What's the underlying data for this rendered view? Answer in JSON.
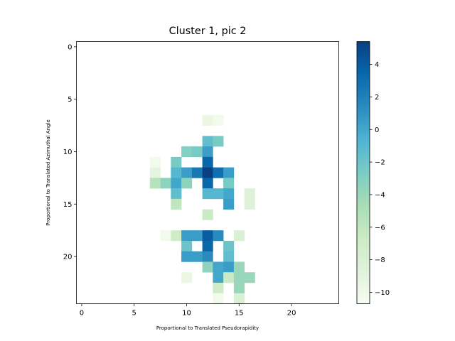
{
  "chart_data": {
    "type": "heatmap",
    "title": "Cluster 1, pic 2",
    "xlabel": "Proportional to Translated Pseudorapidity",
    "ylabel": "Proportional to Translated Azimuthal Angle",
    "grid_size": [
      25,
      25
    ],
    "x_ticks": [
      "0",
      "5",
      "10",
      "15",
      "20"
    ],
    "y_ticks": [
      "0",
      "5",
      "10",
      "15",
      "20"
    ],
    "colormap": "GnBu",
    "vmin": -10.7,
    "vmax": 5.4,
    "colorbar_ticks": [
      "4",
      "2",
      "0",
      "−2",
      "−4",
      "−6",
      "−8",
      "−10"
    ],
    "colorbar_tick_values": [
      4,
      2,
      0,
      -2,
      -4,
      -6,
      -8,
      -10
    ],
    "cells": [
      {
        "row": 7,
        "col": 12,
        "value": -9.5
      },
      {
        "row": 7,
        "col": 13,
        "value": -10.3
      },
      {
        "row": 9,
        "col": 12,
        "value": -1.5
      },
      {
        "row": 9,
        "col": 13,
        "value": -2.5
      },
      {
        "row": 10,
        "col": 10,
        "value": -3.0
      },
      {
        "row": 10,
        "col": 11,
        "value": -2.5
      },
      {
        "row": 10,
        "col": 12,
        "value": 0.5
      },
      {
        "row": 11,
        "col": 7,
        "value": -10.3
      },
      {
        "row": 11,
        "col": 9,
        "value": -2.5
      },
      {
        "row": 11,
        "col": 12,
        "value": 3.5
      },
      {
        "row": 12,
        "col": 7,
        "value": -9.0
      },
      {
        "row": 12,
        "col": 9,
        "value": -1.0
      },
      {
        "row": 12,
        "col": 10,
        "value": 0.5
      },
      {
        "row": 12,
        "col": 11,
        "value": 2.5
      },
      {
        "row": 12,
        "col": 12,
        "value": 5.4
      },
      {
        "row": 12,
        "col": 13,
        "value": 3.0
      },
      {
        "row": 12,
        "col": 14,
        "value": 0.5
      },
      {
        "row": 13,
        "col": 7,
        "value": -5.5
      },
      {
        "row": 13,
        "col": 8,
        "value": -3.5
      },
      {
        "row": 13,
        "col": 9,
        "value": 0.0
      },
      {
        "row": 13,
        "col": 10,
        "value": -3.5
      },
      {
        "row": 13,
        "col": 12,
        "value": 3.5
      },
      {
        "row": 13,
        "col": 14,
        "value": -2.5
      },
      {
        "row": 14,
        "col": 9,
        "value": -1.5
      },
      {
        "row": 14,
        "col": 12,
        "value": -1.0
      },
      {
        "row": 14,
        "col": 13,
        "value": -1.0
      },
      {
        "row": 14,
        "col": 14,
        "value": 0.0
      },
      {
        "row": 14,
        "col": 16,
        "value": -8.5
      },
      {
        "row": 15,
        "col": 9,
        "value": -6.0
      },
      {
        "row": 15,
        "col": 14,
        "value": 0.5
      },
      {
        "row": 15,
        "col": 16,
        "value": -8.5
      },
      {
        "row": 16,
        "col": 12,
        "value": -6.5
      },
      {
        "row": 18,
        "col": 8,
        "value": -10.3
      },
      {
        "row": 18,
        "col": 9,
        "value": -7.0
      },
      {
        "row": 18,
        "col": 10,
        "value": 0.5
      },
      {
        "row": 18,
        "col": 11,
        "value": 0.5
      },
      {
        "row": 18,
        "col": 12,
        "value": 4.0
      },
      {
        "row": 18,
        "col": 13,
        "value": 1.5
      },
      {
        "row": 18,
        "col": 15,
        "value": -8.0
      },
      {
        "row": 19,
        "col": 10,
        "value": -2.0
      },
      {
        "row": 19,
        "col": 12,
        "value": 3.5
      },
      {
        "row": 19,
        "col": 14,
        "value": -2.0
      },
      {
        "row": 20,
        "col": 10,
        "value": 0.5
      },
      {
        "row": 20,
        "col": 11,
        "value": 0.5
      },
      {
        "row": 20,
        "col": 12,
        "value": 1.5
      },
      {
        "row": 20,
        "col": 14,
        "value": -1.5
      },
      {
        "row": 21,
        "col": 12,
        "value": -3.5
      },
      {
        "row": 21,
        "col": 13,
        "value": 0.0
      },
      {
        "row": 21,
        "col": 14,
        "value": 0.5
      },
      {
        "row": 21,
        "col": 15,
        "value": -4.0
      },
      {
        "row": 22,
        "col": 10,
        "value": -9.5
      },
      {
        "row": 22,
        "col": 13,
        "value": 0.0
      },
      {
        "row": 22,
        "col": 14,
        "value": -6.5
      },
      {
        "row": 22,
        "col": 15,
        "value": -4.0
      },
      {
        "row": 22,
        "col": 16,
        "value": -4.0
      },
      {
        "row": 23,
        "col": 13,
        "value": -7.0
      },
      {
        "row": 23,
        "col": 15,
        "value": -4.0
      },
      {
        "row": 24,
        "col": 13,
        "value": -10.3
      },
      {
        "row": 24,
        "col": 15,
        "value": -8.0
      }
    ]
  }
}
